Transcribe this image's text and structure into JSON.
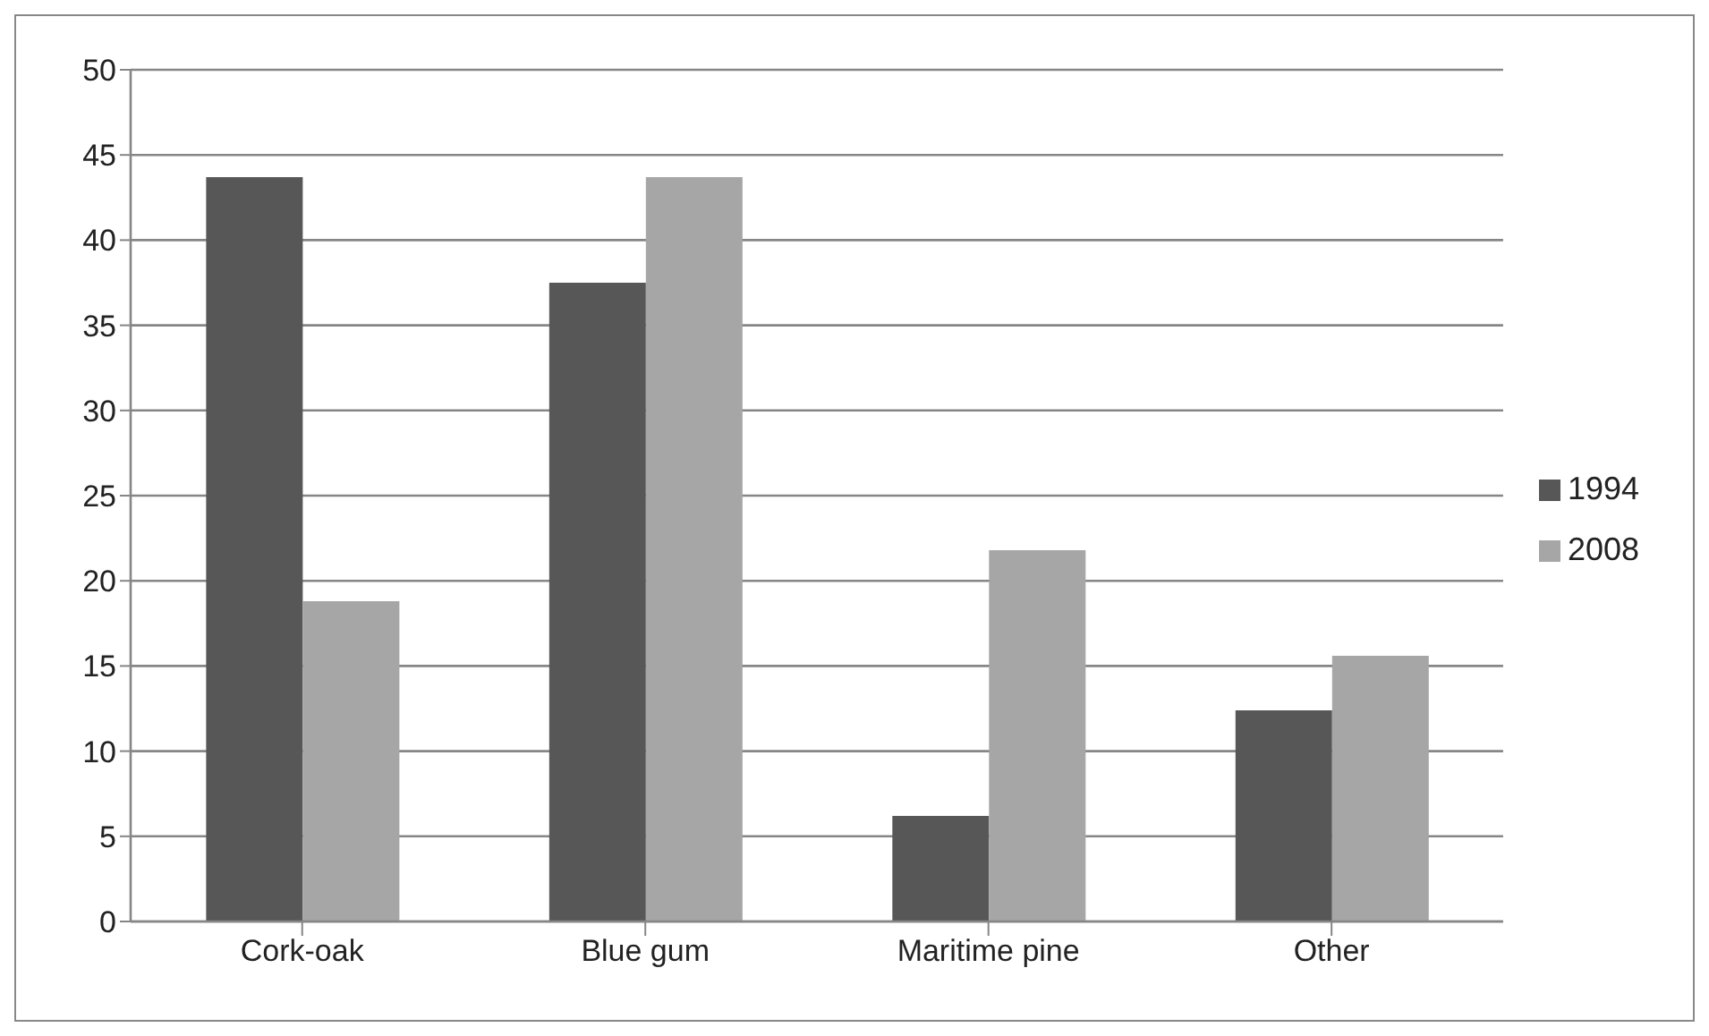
{
  "chart_data": {
    "type": "bar",
    "categories": [
      "Cork-oak",
      "Blue gum",
      "Maritime pine",
      "Other"
    ],
    "series": [
      {
        "name": "1994",
        "color": "#575757",
        "values": [
          43.7,
          37.5,
          6.2,
          12.4
        ]
      },
      {
        "name": "2008",
        "color": "#a6a6a6",
        "values": [
          18.8,
          43.7,
          21.8,
          15.6
        ]
      }
    ],
    "ylim": [
      0,
      50
    ],
    "yticks": [
      0,
      5,
      10,
      15,
      20,
      25,
      30,
      35,
      40,
      45,
      50
    ],
    "grid": "y",
    "legend": "right"
  }
}
